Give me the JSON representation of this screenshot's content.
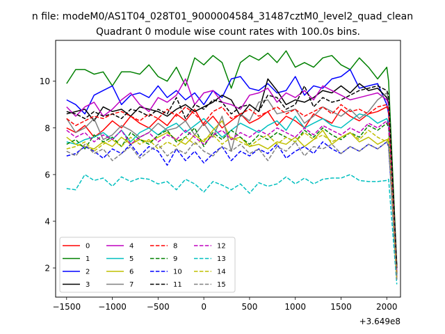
{
  "chart_data": {
    "type": "line",
    "suptitle": "n file: modeM0/AS1T04_028T01_9000004584_31487cztM0_level2_quad_clean",
    "title": "Quadrant 0 module wise count rates with 100.0s bins.",
    "xlabel": "",
    "ylabel": "",
    "offset_label": "+3.649e8",
    "xlim": [
      -1620,
      2150
    ],
    "ylim": [
      0.75,
      11.75
    ],
    "xticks": [
      -1500,
      -1000,
      -500,
      0,
      500,
      1000,
      1500,
      2000
    ],
    "xtick_labels": [
      "−1500",
      "−1000",
      "−500",
      "0",
      "500",
      "1000",
      "1500",
      "2000"
    ],
    "yticks": [
      2,
      4,
      6,
      8,
      10
    ],
    "ytick_labels": [
      "2",
      "4",
      "6",
      "8",
      "10"
    ],
    "grid": false,
    "legend_position": "lower-left",
    "legend_columns": 4,
    "x": [
      -1500,
      -1400,
      -1300,
      -1200,
      -1100,
      -1000,
      -900,
      -800,
      -700,
      -600,
      -500,
      -400,
      -300,
      -200,
      -100,
      0,
      100,
      200,
      300,
      400,
      500,
      600,
      700,
      800,
      900,
      1000,
      1100,
      1200,
      1300,
      1400,
      1500,
      1600,
      1700,
      1800,
      1900,
      2000,
      2020,
      2110
    ],
    "series": [
      {
        "name": "0",
        "color": "#ff0000",
        "dash": "solid",
        "values": [
          8.0,
          7.8,
          8.1,
          7.6,
          7.9,
          8.3,
          8.0,
          8.5,
          8.2,
          8.0,
          8.4,
          8.1,
          8.6,
          8.3,
          8.8,
          8.1,
          8.5,
          8.0,
          8.3,
          8.6,
          8.2,
          8.4,
          8.7,
          8.1,
          8.5,
          8.3,
          8.0,
          8.6,
          8.4,
          8.2,
          8.8,
          8.5,
          8.3,
          8.6,
          8.7,
          8.9,
          8.7,
          1.8
        ]
      },
      {
        "name": "1",
        "color": "#008000",
        "dash": "solid",
        "values": [
          9.9,
          10.5,
          10.5,
          10.3,
          10.4,
          9.8,
          10.4,
          10.4,
          10.3,
          10.7,
          10.2,
          10.0,
          10.6,
          9.8,
          11.0,
          10.7,
          11.1,
          10.8,
          9.7,
          10.8,
          11.1,
          10.9,
          11.2,
          10.8,
          11.3,
          10.6,
          10.8,
          10.6,
          11.0,
          11.1,
          10.7,
          10.5,
          11.0,
          10.6,
          10.1,
          10.6,
          10.0,
          2.1
        ]
      },
      {
        "name": "2",
        "color": "#0000ff",
        "dash": "solid",
        "values": [
          9.2,
          9.0,
          8.6,
          9.4,
          9.6,
          9.8,
          9.0,
          9.4,
          9.5,
          9.3,
          9.8,
          9.3,
          9.6,
          9.2,
          9.5,
          9.0,
          9.6,
          9.3,
          10.1,
          10.2,
          9.7,
          9.6,
          9.9,
          9.5,
          9.6,
          10.2,
          9.4,
          9.8,
          9.7,
          10.1,
          10.2,
          10.5,
          9.7,
          9.8,
          9.9,
          9.0,
          8.6,
          1.6
        ]
      },
      {
        "name": "3",
        "color": "#000000",
        "dash": "solid",
        "values": [
          8.6,
          8.7,
          8.8,
          8.3,
          8.9,
          8.7,
          8.8,
          8.5,
          8.9,
          8.8,
          8.7,
          8.5,
          8.8,
          9.0,
          8.7,
          8.9,
          9.1,
          9.4,
          9.2,
          8.5,
          9.0,
          8.7,
          10.1,
          9.6,
          9.0,
          9.2,
          9.1,
          9.3,
          9.6,
          9.5,
          9.8,
          9.5,
          9.9,
          9.6,
          9.7,
          9.3,
          9.0,
          2.0
        ]
      },
      {
        "name": "4",
        "color": "#bf00bf",
        "dash": "solid",
        "values": [
          8.9,
          8.5,
          8.9,
          9.1,
          8.5,
          8.8,
          9.2,
          9.5,
          9.0,
          8.7,
          9.3,
          9.1,
          9.4,
          10.1,
          9.0,
          9.5,
          9.6,
          9.1,
          9.0,
          8.8,
          9.4,
          9.5,
          9.7,
          9.1,
          9.5,
          9.3,
          9.6,
          9.2,
          9.8,
          9.6,
          9.4,
          9.2,
          9.3,
          9.4,
          9.5,
          9.2,
          9.0,
          1.9
        ]
      },
      {
        "name": "5",
        "color": "#00bfbf",
        "dash": "solid",
        "values": [
          7.4,
          7.3,
          7.5,
          7.6,
          7.8,
          7.5,
          7.9,
          7.4,
          7.8,
          8.0,
          7.7,
          8.0,
          8.2,
          7.8,
          8.1,
          8.4,
          8.0,
          7.6,
          7.9,
          8.2,
          8.0,
          7.8,
          8.1,
          8.3,
          7.9,
          8.5,
          8.0,
          8.2,
          8.4,
          8.1,
          8.0,
          8.3,
          8.6,
          8.5,
          8.2,
          8.4,
          8.2,
          1.7
        ]
      },
      {
        "name": "6",
        "color": "#bfbf00",
        "dash": "solid",
        "values": [
          7.6,
          7.3,
          7.2,
          7.1,
          7.4,
          7.2,
          7.6,
          7.3,
          7.5,
          7.4,
          7.6,
          7.8,
          7.5,
          7.3,
          7.7,
          7.4,
          7.9,
          8.3,
          7.5,
          7.6,
          7.2,
          7.3,
          7.1,
          7.4,
          7.3,
          7.6,
          7.2,
          7.5,
          7.9,
          7.3,
          7.6,
          7.8,
          7.4,
          7.6,
          7.3,
          7.5,
          7.4,
          1.5
        ]
      },
      {
        "name": "7",
        "color": "#808080",
        "dash": "solid",
        "values": [
          8.4,
          7.8,
          8.0,
          8.4,
          7.5,
          7.7,
          8.1,
          7.9,
          7.6,
          7.8,
          8.2,
          7.9,
          8.0,
          8.3,
          7.7,
          8.2,
          7.6,
          8.5,
          7.0,
          8.6,
          8.3,
          9.1,
          9.2,
          8.6,
          8.7,
          8.8,
          8.2,
          8.5,
          8.9,
          8.7,
          8.5,
          8.8,
          8.4,
          8.7,
          9.2,
          9.5,
          9.2,
          1.6
        ]
      },
      {
        "name": "8",
        "color": "#ff0000",
        "dash": "dashed",
        "values": [
          8.4,
          8.1,
          8.3,
          8.5,
          8.4,
          8.6,
          8.7,
          8.5,
          8.3,
          8.6,
          8.4,
          8.8,
          8.5,
          8.9,
          8.6,
          8.2,
          8.7,
          8.9,
          8.4,
          8.6,
          8.8,
          8.5,
          8.7,
          8.9,
          8.6,
          8.8,
          8.5,
          8.7,
          8.9,
          8.6,
          9.0,
          8.7,
          8.8,
          8.6,
          8.9,
          9.0,
          8.7,
          1.8
        ]
      },
      {
        "name": "9",
        "color": "#008000",
        "dash": "dashed",
        "values": [
          7.3,
          7.5,
          7.1,
          7.7,
          7.4,
          7.6,
          7.2,
          7.8,
          7.5,
          7.3,
          7.7,
          7.9,
          7.4,
          7.6,
          8.0,
          7.2,
          7.8,
          7.5,
          7.9,
          7.6,
          7.3,
          7.7,
          7.5,
          7.8,
          7.6,
          7.4,
          7.9,
          7.6,
          8.0,
          7.7,
          7.5,
          7.8,
          7.6,
          8.1,
          7.9,
          8.2,
          8.0,
          1.7
        ]
      },
      {
        "name": "10",
        "color": "#0000ff",
        "dash": "dashed",
        "values": [
          6.8,
          6.9,
          7.2,
          7.0,
          6.7,
          7.1,
          6.9,
          7.3,
          6.8,
          7.2,
          7.0,
          6.4,
          7.1,
          6.6,
          7.0,
          6.5,
          6.9,
          7.2,
          6.6,
          7.0,
          6.8,
          7.1,
          6.9,
          7.3,
          6.7,
          7.0,
          7.2,
          6.9,
          7.4,
          7.1,
          6.9,
          7.2,
          7.0,
          7.3,
          7.1,
          7.4,
          7.2,
          1.5
        ]
      },
      {
        "name": "11",
        "color": "#000000",
        "dash": "dashed",
        "values": [
          8.7,
          8.6,
          8.4,
          8.7,
          8.5,
          8.6,
          8.4,
          8.8,
          8.7,
          8.5,
          8.8,
          8.6,
          9.3,
          8.4,
          9.0,
          8.8,
          9.2,
          9.1,
          8.6,
          8.9,
          9.0,
          8.7,
          9.4,
          9.3,
          8.8,
          9.0,
          9.8,
          8.9,
          9.3,
          9.1,
          9.2,
          9.4,
          9.6,
          9.7,
          9.8,
          9.6,
          9.4,
          2.0
        ]
      },
      {
        "name": "12",
        "color": "#bf00bf",
        "dash": "dashed",
        "values": [
          7.9,
          7.6,
          7.8,
          7.4,
          7.7,
          7.5,
          7.9,
          7.3,
          7.6,
          7.8,
          7.4,
          7.7,
          7.5,
          7.9,
          7.6,
          7.3,
          7.7,
          7.9,
          7.5,
          7.8,
          7.6,
          7.9,
          7.7,
          8.0,
          7.8,
          7.6,
          8.0,
          7.7,
          8.1,
          7.9,
          7.7,
          8.0,
          7.8,
          8.2,
          8.0,
          8.3,
          8.1,
          1.6
        ]
      },
      {
        "name": "13",
        "color": "#00bfbf",
        "dash": "dashed",
        "values": [
          5.4,
          5.35,
          6.0,
          5.75,
          5.85,
          5.5,
          5.9,
          5.7,
          5.85,
          5.8,
          5.6,
          5.7,
          5.35,
          5.8,
          5.6,
          5.25,
          5.7,
          5.55,
          5.35,
          5.6,
          5.2,
          5.65,
          5.5,
          5.6,
          5.9,
          5.6,
          5.85,
          5.6,
          5.8,
          5.85,
          5.85,
          6.0,
          5.75,
          5.7,
          5.7,
          5.75,
          5.8,
          1.3
        ]
      },
      {
        "name": "14",
        "color": "#bfbf00",
        "dash": "dashed",
        "values": [
          7.1,
          7.2,
          7.4,
          7.0,
          7.3,
          7.5,
          7.2,
          7.6,
          7.3,
          7.5,
          7.1,
          7.4,
          7.2,
          7.6,
          7.3,
          7.5,
          7.7,
          7.3,
          7.6,
          7.4,
          7.2,
          7.5,
          7.7,
          7.3,
          7.6,
          7.4,
          7.8,
          7.5,
          7.7,
          7.4,
          7.6,
          7.8,
          7.5,
          7.9,
          7.6,
          7.4,
          7.6,
          1.5
        ]
      },
      {
        "name": "15",
        "color": "#808080",
        "dash": "dashed",
        "values": [
          7.0,
          6.8,
          7.3,
          6.9,
          7.1,
          6.6,
          6.9,
          7.2,
          6.7,
          7.0,
          7.3,
          6.8,
          7.1,
          6.9,
          7.4,
          7.0,
          6.8,
          7.2,
          7.0,
          7.3,
          6.9,
          7.1,
          6.6,
          7.2,
          7.0,
          7.4,
          6.8,
          7.2,
          7.1,
          7.3,
          6.9,
          7.2,
          7.0,
          7.3,
          7.1,
          7.4,
          7.2,
          1.5
        ]
      }
    ]
  }
}
